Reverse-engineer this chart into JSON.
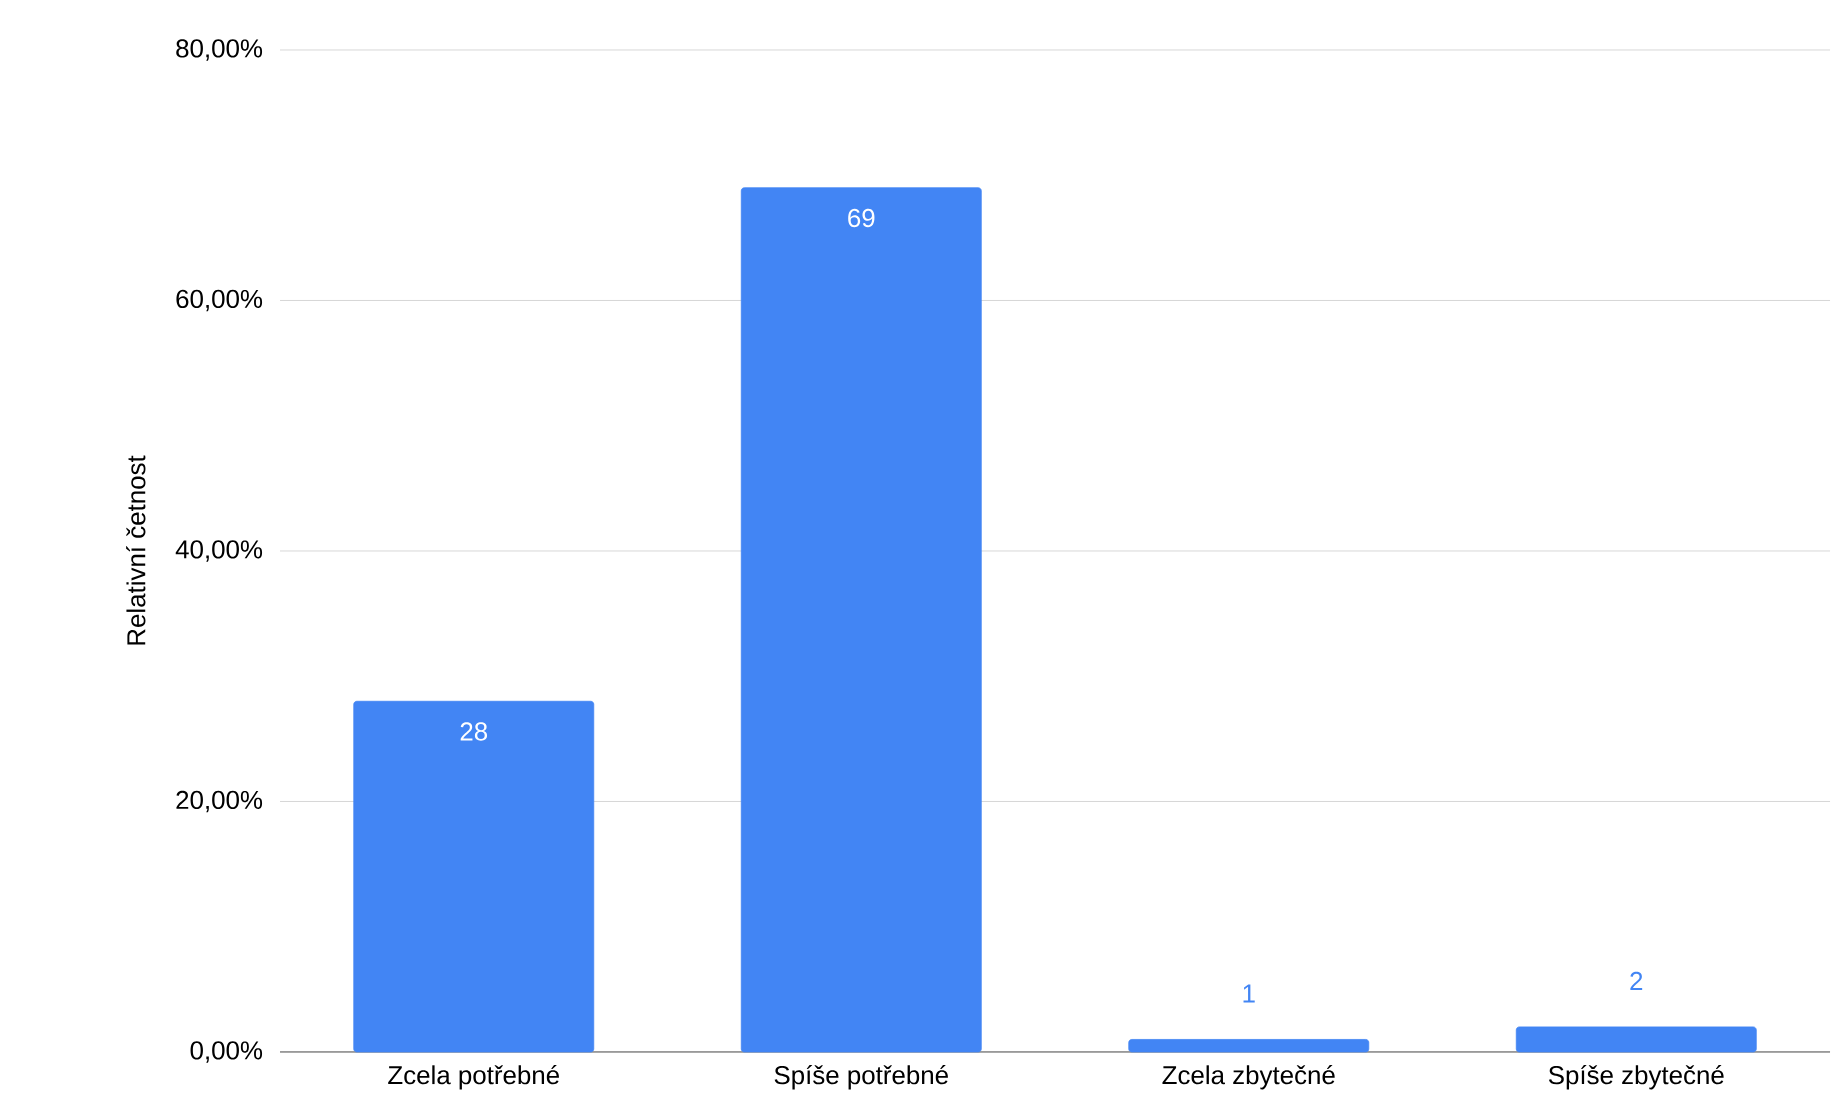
{
  "chart_data": {
    "type": "bar",
    "ylabel": "Relativní četnost",
    "categories": [
      "Zcela potřebné",
      "Spíše potřebné",
      "Zcela zbytečné",
      "Spíše zbytečné"
    ],
    "values": [
      28,
      69,
      1,
      2
    ],
    "value_labels": [
      "28",
      "69",
      "1",
      "2"
    ],
    "color": "#4285f4",
    "ylim": [
      0,
      80
    ],
    "yticks": [
      {
        "value": 0,
        "label": "0,00%"
      },
      {
        "value": 20,
        "label": "20,00%"
      },
      {
        "value": 40,
        "label": "40,00%"
      },
      {
        "value": 60,
        "label": "60,00%"
      },
      {
        "value": 80,
        "label": "80,00%"
      }
    ],
    "grid": "y"
  }
}
